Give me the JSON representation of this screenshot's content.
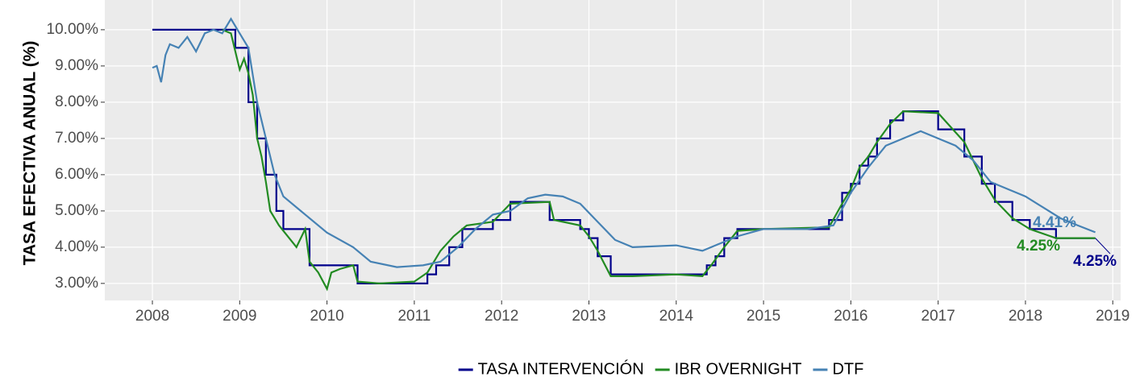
{
  "chart_data": {
    "type": "line",
    "ylabel": "TASA EFECTIVA ANUAL (%)",
    "xlim": [
      2007.455,
      2019.09
    ],
    "xticks": [
      2008,
      2009,
      2010,
      2011,
      2012,
      2013,
      2014,
      2015,
      2016,
      2017,
      2018,
      2019
    ],
    "ylim": [
      2.53,
      10.82
    ],
    "yticks": [
      {
        "value": 3,
        "label": "3.00%"
      },
      {
        "value": 4,
        "label": "4.00%"
      },
      {
        "value": 5,
        "label": "5.00%"
      },
      {
        "value": 6,
        "label": "6.00%"
      },
      {
        "value": 7,
        "label": "7.00%"
      },
      {
        "value": 8,
        "label": "8.00%"
      },
      {
        "value": 9,
        "label": "9.00%"
      },
      {
        "value": 10,
        "label": "10.00%"
      }
    ],
    "grid": true,
    "legend": "bottom",
    "series": [
      {
        "name": "TASA INTERVENCIÓN",
        "color": "#00008b",
        "step": true,
        "end_label": "4.25%",
        "x": [
          2008.0,
          2008.95,
          2009.1,
          2009.2,
          2009.3,
          2009.42,
          2009.5,
          2009.8,
          2010.35,
          2011.15,
          2011.25,
          2011.4,
          2011.55,
          2011.9,
          2012.1,
          2012.55,
          2012.9,
          2013.0,
          2013.1,
          2013.25,
          2014.35,
          2014.45,
          2014.55,
          2014.7,
          2015.75,
          2015.9,
          2016.0,
          2016.1,
          2016.2,
          2016.3,
          2016.45,
          2016.6,
          2017.0,
          2017.3,
          2017.5,
          2017.65,
          2017.85,
          2018.05,
          2018.35,
          2018.8
        ],
        "values": [
          10,
          9.5,
          8,
          7,
          6,
          5,
          4.5,
          3.5,
          3,
          3.25,
          3.5,
          4,
          4.5,
          4.75,
          5.25,
          4.75,
          4.5,
          4.25,
          3.75,
          3.25,
          3.5,
          3.75,
          4.25,
          4.5,
          4.75,
          5.5,
          5.75,
          6.25,
          6.5,
          7,
          7.5,
          7.75,
          7.25,
          6.5,
          5.75,
          5.25,
          4.75,
          4.5,
          4.25,
          4.25
        ]
      },
      {
        "name": "IBR OVERNIGHT",
        "color": "#228b22",
        "step": false,
        "end_label": "4.25%",
        "x": [
          2008.8,
          2008.9,
          2009.0,
          2009.05,
          2009.1,
          2009.15,
          2009.2,
          2009.25,
          2009.3,
          2009.35,
          2009.45,
          2009.55,
          2009.65,
          2009.75,
          2009.8,
          2009.9,
          2010.0,
          2010.05,
          2010.15,
          2010.3,
          2010.35,
          2010.6,
          2011.0,
          2011.15,
          2011.3,
          2011.45,
          2011.6,
          2011.9,
          2012.1,
          2012.55,
          2012.6,
          2012.9,
          2013.0,
          2013.1,
          2013.25,
          2013.5,
          2014.0,
          2014.3,
          2014.4,
          2014.55,
          2014.7,
          2015.0,
          2015.75,
          2015.9,
          2016.0,
          2016.1,
          2016.2,
          2016.3,
          2016.45,
          2016.6,
          2017.0,
          2017.3,
          2017.5,
          2017.65,
          2017.85,
          2018.05,
          2018.35,
          2018.8
        ],
        "values": [
          10,
          9.9,
          8.9,
          9.2,
          8.8,
          8.2,
          7,
          6.5,
          5.8,
          5,
          4.6,
          4.3,
          4.0,
          4.5,
          3.6,
          3.3,
          2.85,
          3.3,
          3.4,
          3.5,
          3.05,
          3.0,
          3.05,
          3.3,
          3.9,
          4.3,
          4.6,
          4.7,
          5.2,
          5.25,
          4.75,
          4.6,
          4.3,
          3.9,
          3.2,
          3.2,
          3.25,
          3.2,
          3.5,
          4.0,
          4.45,
          4.5,
          4.55,
          5.2,
          5.6,
          6.2,
          6.5,
          6.9,
          7.4,
          7.75,
          7.7,
          6.9,
          5.9,
          5.3,
          4.8,
          4.5,
          4.25,
          4.25
        ]
      },
      {
        "name": "DTF",
        "color": "#4682b4",
        "step": false,
        "end_label": "4.41%",
        "x": [
          2008.0,
          2008.05,
          2008.1,
          2008.15,
          2008.2,
          2008.3,
          2008.4,
          2008.5,
          2008.6,
          2008.7,
          2008.8,
          2008.9,
          2009.0,
          2009.1,
          2009.2,
          2009.3,
          2009.4,
          2009.5,
          2009.7,
          2010.0,
          2010.3,
          2010.5,
          2010.8,
          2011.1,
          2011.3,
          2011.5,
          2011.7,
          2011.9,
          2012.1,
          2012.3,
          2012.5,
          2012.7,
          2012.9,
          2013.1,
          2013.3,
          2013.5,
          2014.0,
          2014.3,
          2014.5,
          2014.7,
          2015.0,
          2015.5,
          2015.8,
          2016.0,
          2016.2,
          2016.4,
          2016.6,
          2016.8,
          2017.0,
          2017.2,
          2017.4,
          2017.6,
          2017.8,
          2018.0,
          2018.2,
          2018.4,
          2018.6,
          2018.8
        ],
        "values": [
          8.95,
          9.0,
          8.55,
          9.3,
          9.6,
          9.5,
          9.8,
          9.4,
          9.9,
          10.0,
          9.9,
          10.3,
          9.9,
          9.5,
          8.0,
          7.0,
          6.0,
          5.4,
          5.0,
          4.4,
          4.0,
          3.6,
          3.45,
          3.5,
          3.6,
          4.0,
          4.5,
          4.9,
          5.0,
          5.35,
          5.45,
          5.4,
          5.2,
          4.7,
          4.2,
          4.0,
          4.05,
          3.9,
          4.1,
          4.3,
          4.5,
          4.5,
          4.6,
          5.5,
          6.2,
          6.8,
          7.0,
          7.2,
          7.0,
          6.8,
          6.4,
          5.8,
          5.6,
          5.4,
          5.1,
          4.8,
          4.6,
          4.41
        ]
      }
    ]
  }
}
